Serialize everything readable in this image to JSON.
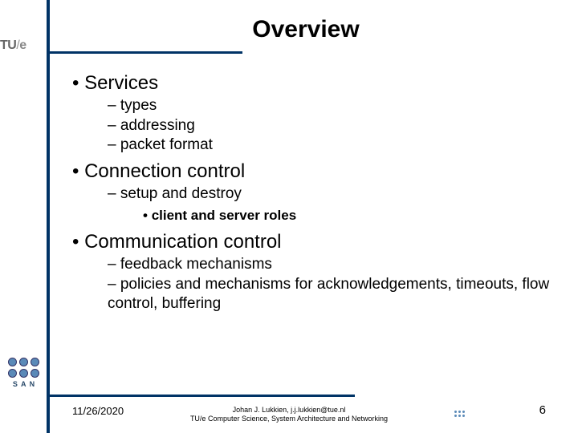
{
  "logo": {
    "tu": "TU",
    "slash": "/",
    "e": "e"
  },
  "title": "Overview",
  "bullets": {
    "b1": "Services",
    "b1s1": "types",
    "b1s2": "addressing",
    "b1s3": "packet format",
    "b2": "Connection control",
    "b2s1": "setup and destroy",
    "b2s1a": "client and server roles",
    "b3": "Communication control",
    "b3s1": "feedback mechanisms",
    "b3s2": "policies and mechanisms for acknowledgements, timeouts, flow control, buffering"
  },
  "footer": {
    "date": "11/26/2020",
    "line1": "Johan J. Lukkien, j.j.lukkien@tue.nl",
    "line2": "TU/e Computer Science, System Architecture and Networking",
    "page": "6"
  },
  "san": "S A N",
  "colors": {
    "accent": "#003366",
    "node": "#5b8ab8"
  }
}
